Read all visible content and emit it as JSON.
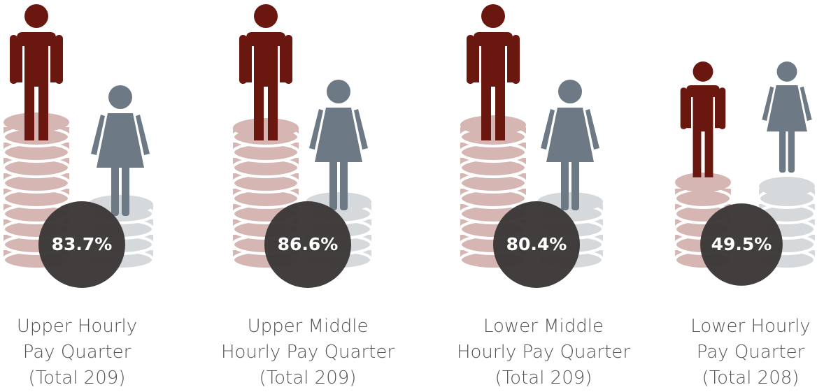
{
  "quarters": [
    {
      "percent": "83.7%",
      "caption": [
        "Upper Hourly",
        "Pay Quarter",
        "(Total 209)"
      ]
    },
    {
      "percent": "86.6%",
      "caption": [
        "Upper Middle",
        "Hourly Pay Quarter",
        "(Total 209)"
      ]
    },
    {
      "percent": "80.4%",
      "caption": [
        "Lower Middle",
        "Hourly Pay Quarter",
        "(Total 209)"
      ]
    },
    {
      "percent": "49.5%",
      "caption": [
        "Lower Hourly",
        "Pay Quarter",
        "(Total 208)"
      ]
    }
  ]
}
